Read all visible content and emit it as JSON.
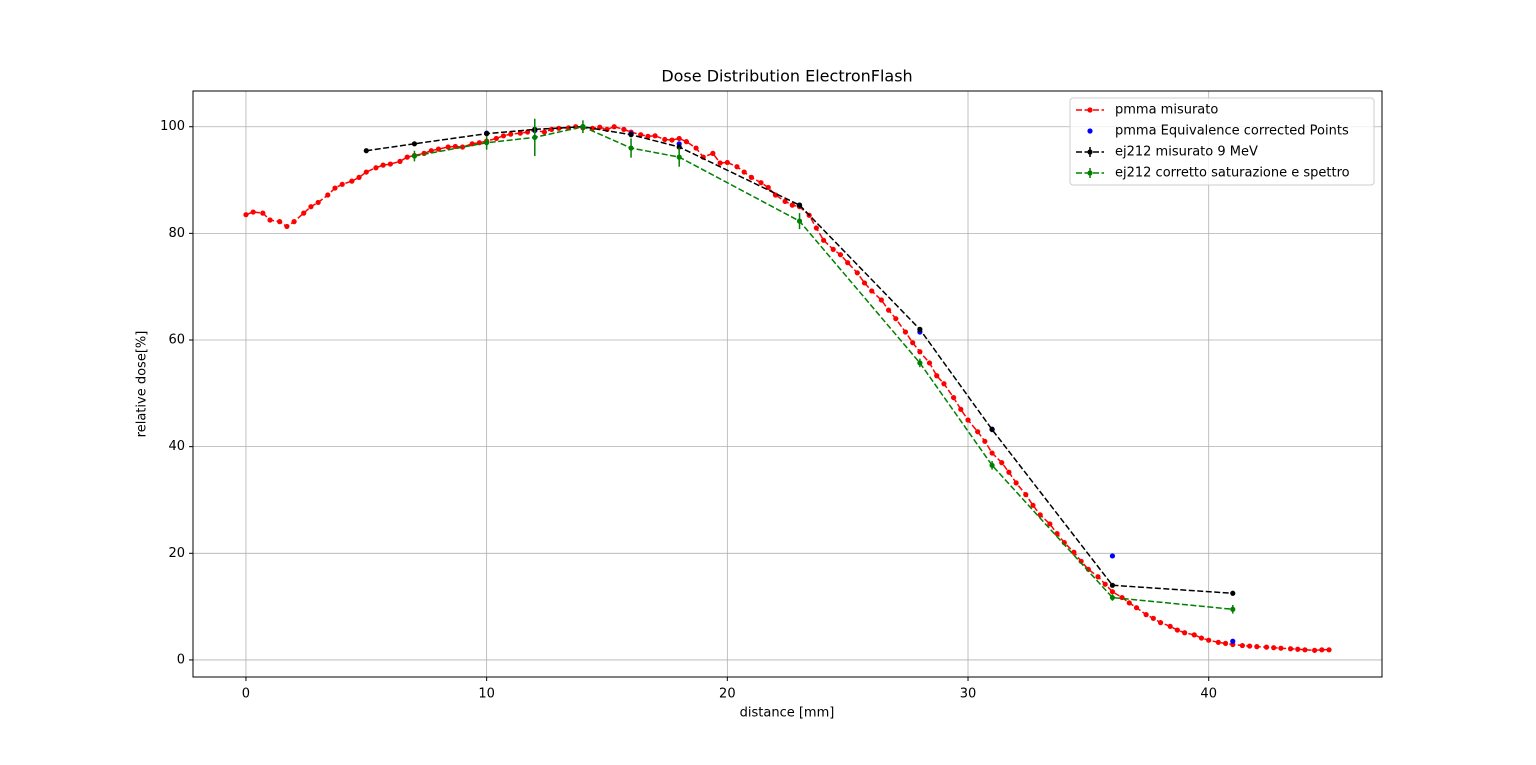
{
  "chart_data": {
    "type": "line",
    "title": "Dose Distribution ElectronFlash",
    "x_label": "distance [mm]",
    "y_label": "relative dose[%]",
    "xlim": [
      -2.2,
      47.2
    ],
    "ylim": [
      -3.2,
      106.7
    ],
    "xticks": [
      0,
      10,
      20,
      30,
      40
    ],
    "yticks": [
      0,
      20,
      40,
      60,
      80,
      100
    ],
    "grid": true,
    "legend": "upper right",
    "series": [
      {
        "name": "pmma misurato",
        "color": "#ff0000",
        "linestyle": "dashed",
        "x": [
          0,
          0.3,
          0.7,
          1,
          1.4,
          1.7,
          2,
          2.4,
          2.7,
          3,
          3.4,
          3.7,
          4,
          4.4,
          4.7,
          5,
          5.4,
          5.7,
          6,
          6.4,
          6.7,
          7,
          7.4,
          7.7,
          8,
          8.4,
          8.7,
          9,
          9.4,
          9.7,
          10,
          10.4,
          10.7,
          11,
          11.4,
          11.7,
          12,
          12.4,
          12.7,
          13,
          13.4,
          13.7,
          14,
          14.4,
          14.7,
          15,
          15.3,
          15.7,
          16,
          16.4,
          16.7,
          17,
          17.4,
          17.7,
          18,
          18.3,
          18.7,
          19,
          19.4,
          19.7,
          20,
          20.4,
          20.7,
          21,
          21.4,
          21.7,
          22,
          22.4,
          22.7,
          23,
          23.4,
          23.7,
          24,
          24.4,
          24.7,
          25,
          25.4,
          25.7,
          26,
          26.4,
          26.7,
          27,
          27.4,
          27.7,
          28,
          28.4,
          28.7,
          29,
          29.4,
          29.7,
          30,
          30.4,
          30.7,
          31,
          31.4,
          31.7,
          32,
          32.4,
          32.7,
          33,
          33.4,
          33.7,
          34,
          34.4,
          34.7,
          35,
          35.4,
          35.7,
          36,
          36.4,
          36.7,
          37,
          37.4,
          37.7,
          38,
          38.4,
          38.7,
          39,
          39.4,
          39.7,
          40,
          40.4,
          40.7,
          41,
          41.4,
          41.7,
          42,
          42.4,
          42.7,
          43,
          43.4,
          43.7,
          44,
          44.4,
          44.7,
          45
        ],
        "values": [
          83.5,
          84,
          83.8,
          82.5,
          82.2,
          81.3,
          82.2,
          83.8,
          85,
          85.8,
          87.2,
          88.5,
          89.2,
          89.8,
          90.5,
          91.5,
          92.3,
          92.8,
          93,
          93.5,
          94.3,
          94.6,
          95,
          95.5,
          95.8,
          96.2,
          96.3,
          96.2,
          96.8,
          97,
          97.3,
          97.8,
          98.3,
          98.6,
          98.8,
          99,
          99.3,
          99,
          99.5,
          99.7,
          99.8,
          100,
          99.8,
          99.7,
          99.9,
          99.5,
          100,
          99.5,
          99,
          98.5,
          98.2,
          98.3,
          97.6,
          97.5,
          97.8,
          97.2,
          96,
          94.3,
          95,
          93.2,
          93.3,
          92.5,
          91.5,
          90.5,
          89.5,
          88.6,
          87.2,
          86,
          85.3,
          85,
          83.4,
          81,
          78.7,
          77,
          76,
          74.5,
          72.6,
          70.7,
          69.2,
          67.5,
          65.6,
          64,
          61.5,
          59.5,
          57.8,
          55.7,
          53.3,
          51.8,
          49.2,
          47,
          45,
          42.8,
          41,
          38.8,
          37,
          35.2,
          33.2,
          31,
          29,
          27.2,
          25.5,
          23.7,
          22,
          20.2,
          18.5,
          17,
          15.6,
          14.2,
          12.8,
          11.7,
          10.7,
          9.8,
          8.5,
          7.8,
          7,
          6.3,
          5.6,
          5.1,
          4.7,
          4.1,
          3.7,
          3.3,
          3.1,
          2.9,
          2.7,
          2.6,
          2.5,
          2.4,
          2.3,
          2.2,
          2.1,
          2,
          1.9,
          1.8,
          1.9,
          1.9
        ]
      },
      {
        "name": "pmma Equivalence corrected Points",
        "color": "#0000ff",
        "x": [
          10,
          12,
          14,
          16,
          18,
          23,
          28,
          31,
          36,
          41
        ],
        "values": [
          98.8,
          99.3,
          100,
          98.7,
          96.8,
          85.3,
          61.5,
          43.3,
          19.5,
          3.5
        ]
      },
      {
        "name": "ej212 misurato 9 MeV",
        "color": "#000000",
        "linestyle": "dashed",
        "x": [
          5,
          7,
          10,
          12,
          14,
          16,
          18,
          23,
          28,
          31,
          36,
          41
        ],
        "values": [
          95.5,
          96.8,
          98.7,
          99.5,
          100,
          98.5,
          96.2,
          85.3,
          62,
          43.2,
          14,
          12.5
        ],
        "errors": [
          0.3,
          0.3,
          0.3,
          0.3,
          0.3,
          0.3,
          0.3,
          0.3,
          0.3,
          0.3,
          0.3,
          0.3
        ]
      },
      {
        "name": "ej212 corretto saturazione e spettro",
        "color": "#008000",
        "linestyle": "dashed",
        "x": [
          7,
          10,
          12,
          14,
          16,
          18,
          23,
          28,
          31,
          36,
          41
        ],
        "values": [
          94.5,
          97,
          98,
          100,
          96,
          94.3,
          82.3,
          55.7,
          36.5,
          11.7,
          9.5
        ],
        "errors": [
          1,
          1.3,
          3.5,
          1.2,
          1.8,
          1.8,
          1.5,
          0.8,
          0.8,
          0.6,
          0.8
        ]
      }
    ]
  }
}
